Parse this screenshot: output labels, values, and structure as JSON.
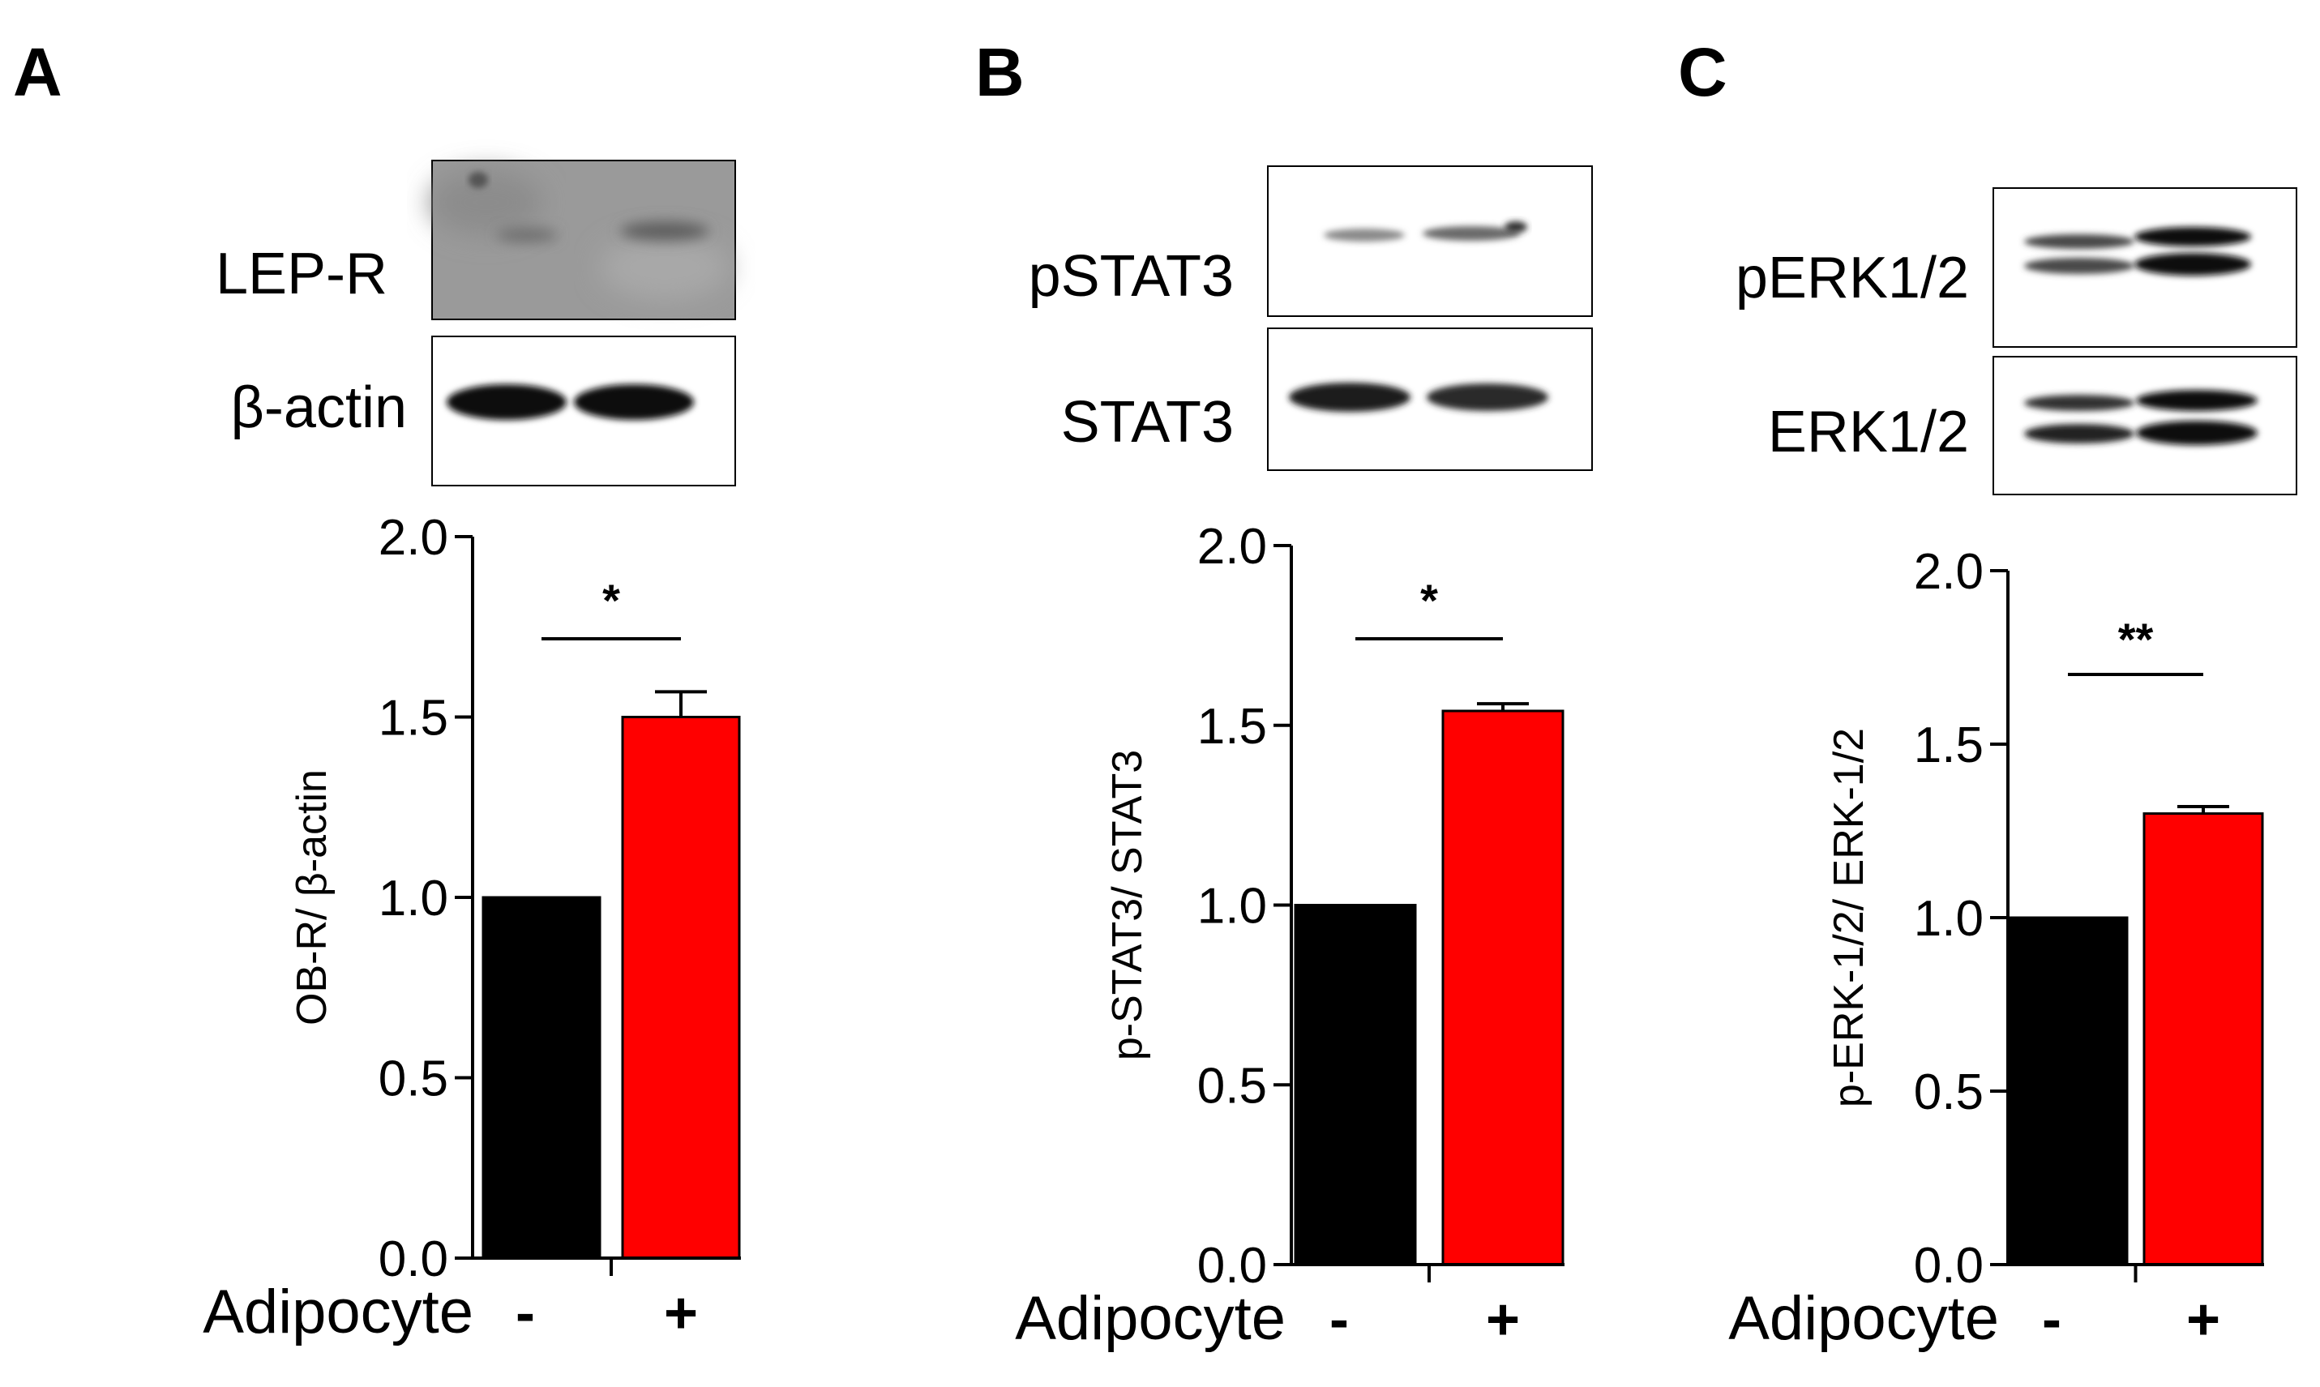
{
  "panels": [
    {
      "letter": "A",
      "blots": [
        {
          "label": "LEP-R",
          "kind": "faint"
        },
        {
          "label": "β-actin",
          "kind": "strong"
        }
      ],
      "group_label": "Adipocyte",
      "significance": "*"
    },
    {
      "letter": "B",
      "blots": [
        {
          "label": "pSTAT3",
          "kind": "thin"
        },
        {
          "label": "STAT3",
          "kind": "strong"
        }
      ],
      "group_label": "Adipocyte",
      "significance": "*"
    },
    {
      "letter": "C",
      "blots": [
        {
          "label": "pERK1/2",
          "kind": "doublet"
        },
        {
          "label": "ERK1/2",
          "kind": "doublet"
        }
      ],
      "group_label": "Adipocyte",
      "significance": "**"
    }
  ],
  "chart_data": [
    {
      "type": "bar",
      "panel": "A",
      "title": "",
      "xlabel": "Adipocyte",
      "ylabel": "OB-R/ β-actin",
      "categories": [
        "-",
        "+"
      ],
      "values": [
        1.0,
        1.5
      ],
      "errors": [
        0,
        0.07
      ],
      "colors": [
        "#000000",
        "#ff0000"
      ],
      "ylim": [
        0,
        2.0
      ],
      "yticks": [
        "0.0",
        "0.5",
        "1.0",
        "1.5",
        "2.0"
      ],
      "significance": "*"
    },
    {
      "type": "bar",
      "panel": "B",
      "title": "",
      "xlabel": "Adipocyte",
      "ylabel": "p-STAT3/ STAT3",
      "categories": [
        "-",
        "+"
      ],
      "values": [
        1.0,
        1.54
      ],
      "errors": [
        0,
        0.02
      ],
      "colors": [
        "#000000",
        "#ff0000"
      ],
      "ylim": [
        0,
        2.0
      ],
      "yticks": [
        "0.0",
        "0.5",
        "1.0",
        "1.5",
        "2.0"
      ],
      "significance": "*"
    },
    {
      "type": "bar",
      "panel": "C",
      "title": "",
      "xlabel": "Adipocyte",
      "ylabel": "p-ERK-1/2/ ERK-1/2",
      "categories": [
        "-",
        "+"
      ],
      "values": [
        1.0,
        1.3
      ],
      "errors": [
        0,
        0.02
      ],
      "colors": [
        "#000000",
        "#ff0000"
      ],
      "ylim": [
        0,
        2.0
      ],
      "yticks": [
        "0.0",
        "0.5",
        "1.0",
        "1.5",
        "2.0"
      ],
      "significance": "**"
    }
  ]
}
